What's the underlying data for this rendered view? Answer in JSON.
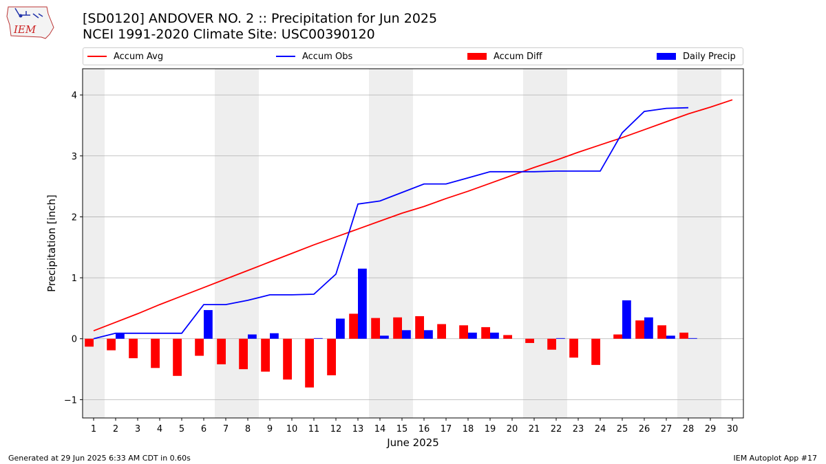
{
  "header": {
    "title_line1": "[SD0120] ANDOVER NO. 2 :: Precipitation for Jun 2025",
    "title_line2": "NCEI 1991-2020 Climate Site: USC00390120",
    "logo_text": "IEM"
  },
  "footer": {
    "left": "Generated at 29 Jun 2025 6:33 AM CDT in 0.60s",
    "right": "IEM Autoplot App #17"
  },
  "legend": {
    "accum_avg": "Accum Avg",
    "accum_obs": "Accum Obs",
    "accum_diff": "Accum Diff",
    "daily_precip": "Daily Precip"
  },
  "colors": {
    "accum_avg": "#ff0000",
    "accum_obs": "#0000ff",
    "accum_diff": "#ff0000",
    "daily_precip": "#0000ff",
    "weekend_shade": "#eeeeee",
    "grid": "#b0b0b0"
  },
  "chart_data": {
    "type": "bar+line",
    "xlabel": "June 2025",
    "ylabel": "Precipitation [inch]",
    "xlim": [
      0.5,
      30.5
    ],
    "ylim": [
      -1.3,
      4.43
    ],
    "yticks": [
      -1,
      0,
      1,
      2,
      3,
      4
    ],
    "ytick_labels": [
      "−1",
      "0",
      "1",
      "2",
      "3",
      "4"
    ],
    "grid": "horizontal",
    "legend_position": "top",
    "days": [
      1,
      2,
      3,
      4,
      5,
      6,
      7,
      8,
      9,
      10,
      11,
      12,
      13,
      14,
      15,
      16,
      17,
      18,
      19,
      20,
      21,
      22,
      23,
      24,
      25,
      26,
      27,
      28,
      29,
      30
    ],
    "shaded_days": [
      1,
      7,
      8,
      14,
      15,
      21,
      22,
      28,
      29
    ],
    "series": [
      {
        "name": "Accum Avg",
        "type": "line",
        "color": "#ff0000",
        "x": [
          1,
          2,
          3,
          4,
          5,
          6,
          7,
          8,
          9,
          10,
          11,
          12,
          13,
          14,
          15,
          16,
          17,
          18,
          19,
          20,
          21,
          22,
          23,
          24,
          25,
          26,
          27,
          28,
          29,
          30
        ],
        "values": [
          0.13,
          0.27,
          0.41,
          0.56,
          0.7,
          0.84,
          0.98,
          1.12,
          1.26,
          1.4,
          1.54,
          1.67,
          1.8,
          1.93,
          2.06,
          2.17,
          2.3,
          2.42,
          2.55,
          2.68,
          2.81,
          2.93,
          3.06,
          3.18,
          3.3,
          3.43,
          3.56,
          3.69,
          3.8,
          3.92
        ]
      },
      {
        "name": "Accum Obs",
        "type": "line",
        "color": "#0000ff",
        "x": [
          1,
          2,
          3,
          4,
          5,
          6,
          7,
          8,
          9,
          10,
          11,
          12,
          13,
          14,
          15,
          16,
          17,
          18,
          19,
          20,
          21,
          22,
          23,
          24,
          25,
          26,
          27,
          28
        ],
        "values": [
          0.0,
          0.09,
          0.09,
          0.09,
          0.09,
          0.56,
          0.56,
          0.63,
          0.72,
          0.72,
          0.73,
          1.06,
          2.21,
          2.26,
          2.4,
          2.54,
          2.54,
          2.64,
          2.74,
          2.74,
          2.74,
          2.75,
          2.75,
          2.75,
          3.38,
          3.73,
          3.78,
          3.79
        ]
      },
      {
        "name": "Accum Diff",
        "type": "bar",
        "color": "#ff0000",
        "offset": "left",
        "x": [
          1,
          2,
          3,
          4,
          5,
          6,
          7,
          8,
          9,
          10,
          11,
          12,
          13,
          14,
          15,
          16,
          17,
          18,
          19,
          20,
          21,
          22,
          23,
          24,
          25,
          26,
          27,
          28
        ],
        "values": [
          -0.13,
          -0.19,
          -0.32,
          -0.48,
          -0.61,
          -0.28,
          -0.42,
          -0.5,
          -0.54,
          -0.67,
          -0.8,
          -0.6,
          0.41,
          0.34,
          0.35,
          0.37,
          0.24,
          0.22,
          0.19,
          0.06,
          -0.07,
          -0.18,
          -0.31,
          -0.43,
          0.07,
          0.3,
          0.22,
          0.1
        ]
      },
      {
        "name": "Daily Precip",
        "type": "bar",
        "color": "#0000ff",
        "offset": "right",
        "x": [
          1,
          2,
          3,
          4,
          5,
          6,
          7,
          8,
          9,
          10,
          11,
          12,
          13,
          14,
          15,
          16,
          17,
          18,
          19,
          20,
          21,
          22,
          23,
          24,
          25,
          26,
          27,
          28
        ],
        "values": [
          0.0,
          0.09,
          0.0,
          0.0,
          0.0,
          0.47,
          0.0,
          0.07,
          0.09,
          0.0,
          0.01,
          0.33,
          1.15,
          0.05,
          0.14,
          0.14,
          0.0,
          0.1,
          0.1,
          0.0,
          0.0,
          0.01,
          0.0,
          0.0,
          0.63,
          0.35,
          0.05,
          0.01
        ]
      }
    ]
  }
}
